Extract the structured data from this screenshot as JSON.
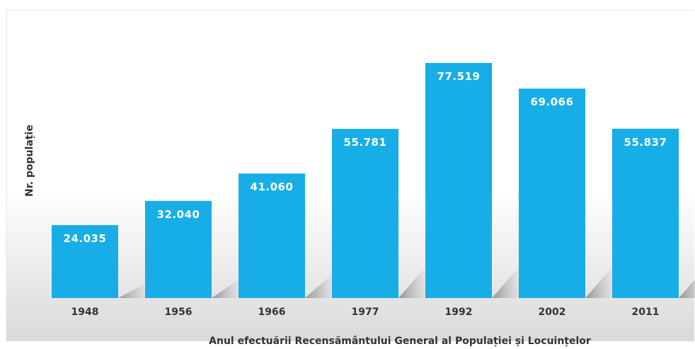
{
  "chart_data": {
    "type": "bar",
    "categories": [
      "1948",
      "1956",
      "1966",
      "1977",
      "1992",
      "2002",
      "2011"
    ],
    "values": [
      24035,
      32040,
      41060,
      55781,
      77519,
      69066,
      55837
    ],
    "value_labels": [
      "24.035",
      "32.040",
      "41.060",
      "55.781",
      "77.519",
      "69.066",
      "55.837"
    ],
    "title": "",
    "xlabel": "Anul efectuării Recensământului General al Populației și Locuințelor",
    "ylabel": "Nr. populație",
    "ylim": [
      0,
      80000
    ],
    "grid": false,
    "legend": "none",
    "colors": {
      "bar": "#17aee8",
      "background_top": "#ffffff",
      "background_bottom": "#d9d9d9",
      "frame": "#e6e6e6",
      "text": "#333333",
      "value_text": "#ffffff"
    }
  }
}
